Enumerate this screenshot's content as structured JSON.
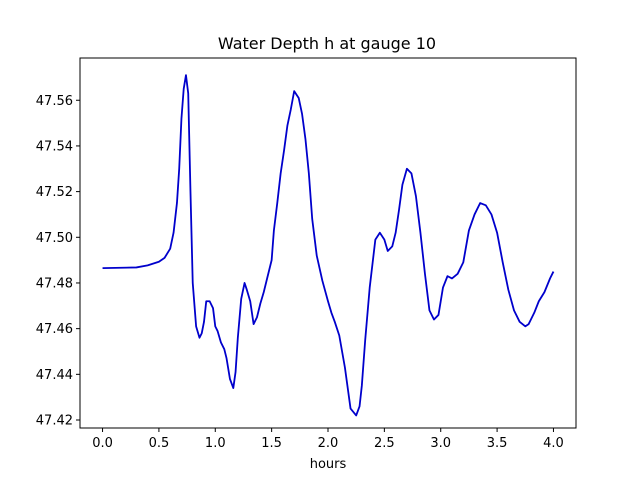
{
  "chart_data": {
    "type": "line",
    "title": "Water Depth h at gauge 10",
    "xlabel": "hours",
    "ylabel": "",
    "xlim": [
      -0.2,
      4.2
    ],
    "ylim": [
      47.4165,
      47.5785
    ],
    "xticks": [
      0.0,
      0.5,
      1.0,
      1.5,
      2.0,
      2.5,
      3.0,
      3.5,
      4.0
    ],
    "xtick_labels": [
      "0.0",
      "0.5",
      "1.0",
      "1.5",
      "2.0",
      "2.5",
      "3.0",
      "3.5",
      "4.0"
    ],
    "yticks": [
      47.42,
      47.44,
      47.46,
      47.48,
      47.5,
      47.52,
      47.54,
      47.56
    ],
    "ytick_labels": [
      "47.42",
      "47.44",
      "47.46",
      "47.48",
      "47.50",
      "47.52",
      "47.54",
      "47.56"
    ],
    "grid": false,
    "series": [
      {
        "color": "#0000cc",
        "x": [
          0.0,
          0.3,
          0.4,
          0.5,
          0.55,
          0.6,
          0.63,
          0.66,
          0.68,
          0.7,
          0.72,
          0.74,
          0.76,
          0.78,
          0.8,
          0.83,
          0.86,
          0.88,
          0.9,
          0.92,
          0.95,
          0.98,
          1.0,
          1.02,
          1.05,
          1.08,
          1.1,
          1.13,
          1.16,
          1.18,
          1.2,
          1.23,
          1.26,
          1.28,
          1.31,
          1.34,
          1.37,
          1.4,
          1.43,
          1.46,
          1.5,
          1.52,
          1.55,
          1.58,
          1.61,
          1.64,
          1.67,
          1.7,
          1.74,
          1.77,
          1.8,
          1.83,
          1.86,
          1.9,
          1.95,
          2.0,
          2.03,
          2.06,
          2.1,
          2.15,
          2.2,
          2.25,
          2.28,
          2.3,
          2.33,
          2.37,
          2.42,
          2.46,
          2.5,
          2.53,
          2.57,
          2.6,
          2.63,
          2.66,
          2.7,
          2.74,
          2.78,
          2.82,
          2.86,
          2.9,
          2.94,
          2.98,
          3.02,
          3.06,
          3.1,
          3.15,
          3.2,
          3.25,
          3.3,
          3.35,
          3.4,
          3.45,
          3.5,
          3.55,
          3.6,
          3.65,
          3.7,
          3.75,
          3.78,
          3.8,
          3.83,
          3.87,
          3.92,
          3.97,
          4.0
        ],
        "y": [
          47.4865,
          47.4868,
          47.4877,
          47.4893,
          47.491,
          47.495,
          47.502,
          47.515,
          47.53,
          47.552,
          47.565,
          47.571,
          47.563,
          47.52,
          47.48,
          47.461,
          47.456,
          47.458,
          47.463,
          47.472,
          47.472,
          47.469,
          47.461,
          47.459,
          47.454,
          47.451,
          47.447,
          47.438,
          47.434,
          47.441,
          47.456,
          47.473,
          47.48,
          47.477,
          47.472,
          47.462,
          47.465,
          47.471,
          47.476,
          47.482,
          47.49,
          47.503,
          47.515,
          47.528,
          47.538,
          47.549,
          47.556,
          47.564,
          47.561,
          47.554,
          47.543,
          47.528,
          47.508,
          47.492,
          47.481,
          47.472,
          47.467,
          47.463,
          47.457,
          47.443,
          47.425,
          47.422,
          47.426,
          47.435,
          47.455,
          47.478,
          47.499,
          47.502,
          47.499,
          47.494,
          47.496,
          47.502,
          47.512,
          47.523,
          47.53,
          47.528,
          47.518,
          47.502,
          47.484,
          47.468,
          47.464,
          47.466,
          47.478,
          47.483,
          47.482,
          47.484,
          47.489,
          47.503,
          47.51,
          47.515,
          47.514,
          47.51,
          47.502,
          47.489,
          47.477,
          47.468,
          47.463,
          47.461,
          47.462,
          47.464,
          47.467,
          47.472,
          47.476,
          47.482,
          47.485
        ]
      }
    ]
  }
}
